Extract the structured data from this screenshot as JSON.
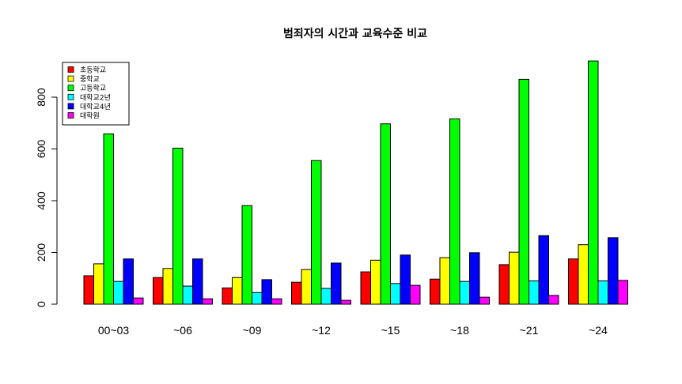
{
  "chart_data": {
    "type": "bar",
    "title": "범죄자의 시간과 교육수준 비교",
    "xlabel": "",
    "ylabel": "",
    "categories": [
      "00~03",
      "~06",
      "~09",
      "~12",
      "~15",
      "~18",
      "~21",
      "~24"
    ],
    "series": [
      {
        "name": "초등학교",
        "color": "#ff0000",
        "values": [
          110,
          103,
          63,
          85,
          125,
          97,
          153,
          175
        ]
      },
      {
        "name": "중학교",
        "color": "#ffff00",
        "values": [
          156,
          138,
          103,
          134,
          170,
          180,
          201,
          230
        ]
      },
      {
        "name": "고등학교",
        "color": "#00ff00",
        "values": [
          658,
          603,
          381,
          555,
          697,
          716,
          869,
          940
        ]
      },
      {
        "name": "대학교2년",
        "color": "#00ffff",
        "values": [
          88,
          70,
          45,
          61,
          80,
          88,
          90,
          90
        ]
      },
      {
        "name": "대학교4년",
        "color": "#0000ff",
        "values": [
          175,
          175,
          95,
          159,
          190,
          199,
          265,
          257
        ]
      },
      {
        "name": "대학원",
        "color": "#ff00ff",
        "values": [
          24,
          21,
          21,
          15,
          73,
          27,
          34,
          92
        ]
      }
    ],
    "ylim": [
      0,
      940
    ],
    "yticks": [
      0,
      200,
      400,
      600,
      800
    ],
    "legend": "top-left",
    "grid": false
  }
}
